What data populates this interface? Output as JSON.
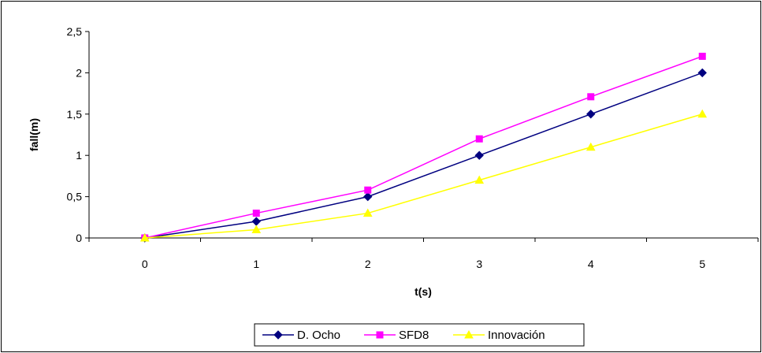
{
  "chart_data": {
    "type": "line",
    "title": "",
    "xlabel": "t(s)",
    "ylabel": "fall(m)",
    "x": [
      0,
      1,
      2,
      3,
      4,
      5
    ],
    "x_tick_labels": [
      "0",
      "1",
      "2",
      "3",
      "4",
      "5"
    ],
    "y_tick_labels": [
      "0",
      "0,5",
      "1",
      "1,5",
      "2",
      "2,5"
    ],
    "y_ticks": [
      0,
      0.5,
      1,
      1.5,
      2,
      2.5
    ],
    "ylim": [
      0,
      2.5
    ],
    "grid": false,
    "legend_position": "bottom",
    "series": [
      {
        "name": "D. Ocho",
        "values": [
          0,
          0.2,
          0.5,
          1.0,
          1.5,
          2.0
        ],
        "color": "#000080",
        "marker": "diamond"
      },
      {
        "name": "SFD8",
        "values": [
          0,
          0.3,
          0.58,
          1.2,
          1.71,
          2.2
        ],
        "color": "#FF00FF",
        "marker": "square"
      },
      {
        "name": "Innovación",
        "values": [
          0,
          0.1,
          0.3,
          0.7,
          1.1,
          1.5
        ],
        "color": "#FFFF00",
        "marker": "triangle"
      }
    ]
  }
}
